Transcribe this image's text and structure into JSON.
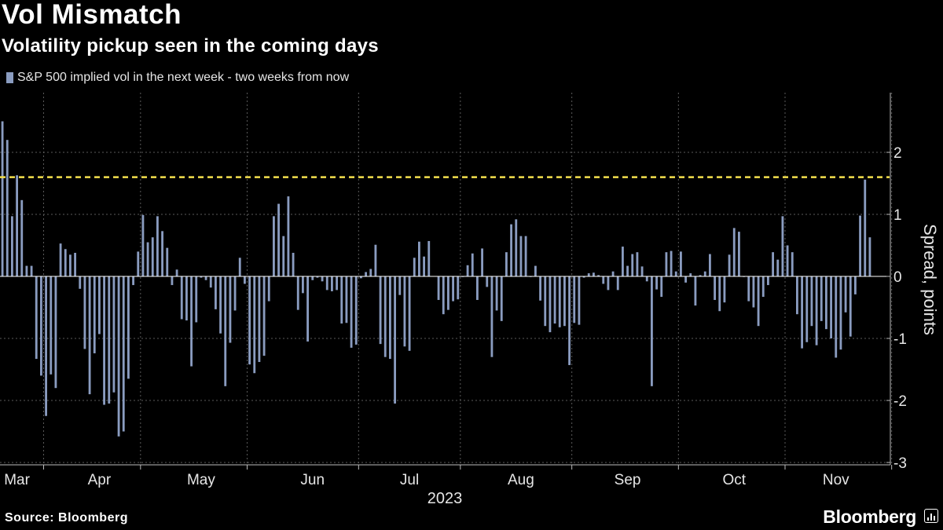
{
  "header": {
    "title": "Vol Mismatch",
    "subtitle": "Volatility pickup seen in the coming days"
  },
  "footer": {
    "source": "Source: Bloomberg",
    "brand": "Bloomberg"
  },
  "colors": {
    "bar": "#8a9cc0",
    "threshold": "#f4e04d",
    "grid": "#5a5a5a",
    "axis": "#bbbbbb",
    "background": "#000000"
  },
  "chart_data": {
    "type": "bar",
    "series": [
      {
        "name": "S&P 500 implied vol in the next week - two weeks from now",
        "values": [
          2.5,
          2.2,
          0.97,
          1.63,
          1.23,
          0.17,
          0.17,
          -1.33,
          -1.6,
          -2.25,
          -1.58,
          -1.8,
          0.53,
          0.44,
          0.35,
          0.38,
          -0.2,
          -1.17,
          -1.9,
          -1.24,
          -0.93,
          -2.07,
          -2.05,
          -1.87,
          -2.58,
          -2.5,
          -1.65,
          -0.14,
          0.4,
          0.99,
          0.55,
          0.63,
          0.97,
          0.73,
          0.46,
          -0.14,
          0.11,
          -0.69,
          -0.71,
          -1.45,
          -0.74,
          -0.02,
          -0.06,
          -0.18,
          -0.53,
          -0.92,
          -1.77,
          -1.07,
          -0.55,
          0.3,
          -0.12,
          -1.42,
          -1.56,
          -1.38,
          -1.28,
          -0.4,
          0.97,
          1.17,
          0.65,
          1.29,
          0.38,
          -0.54,
          -0.27,
          -1.05,
          -0.06,
          -0.02,
          -0.08,
          -0.22,
          -0.24,
          -0.22,
          -0.76,
          -0.75,
          -1.15,
          -1.1,
          -0.03,
          0.07,
          0.12,
          0.51,
          -1.09,
          -1.3,
          -1.33,
          -2.05,
          -0.3,
          -1.13,
          -1.2,
          0.3,
          0.56,
          0.32,
          0.57,
          0.0,
          -0.38,
          -0.61,
          -0.54,
          -0.4,
          -0.37,
          -0.01,
          0.18,
          0.37,
          -0.38,
          0.45,
          -0.17,
          -1.3,
          -0.55,
          -0.72,
          0.39,
          0.84,
          0.92,
          0.65,
          0.65,
          -0.01,
          0.17,
          -0.39,
          -0.8,
          -0.9,
          -0.76,
          -0.82,
          -0.8,
          -1.43,
          -0.75,
          -0.78,
          -0.02,
          0.05,
          0.06,
          0.02,
          -0.12,
          -0.22,
          0.08,
          -0.22,
          0.48,
          0.17,
          0.36,
          0.39,
          0.16,
          -0.08,
          -1.77,
          -0.21,
          -0.33,
          0.39,
          0.41,
          0.08,
          0.4,
          -0.1,
          0.05,
          -0.47,
          0.02,
          0.08,
          0.36,
          -0.38,
          -0.56,
          -0.42,
          0.35,
          0.78,
          0.72,
          -0.01,
          -0.4,
          -0.5,
          -0.8,
          -0.33,
          -0.14,
          0.39,
          0.27,
          0.97,
          0.5,
          0.39,
          -0.61,
          -1.16,
          -1.06,
          -0.8,
          -1.11,
          -0.72,
          -0.85,
          -1.0,
          -1.31,
          -1.18,
          -0.58,
          -0.97,
          -0.29,
          0.98,
          1.56,
          0.63
        ]
      }
    ],
    "threshold": 1.6,
    "xlabel": "2023",
    "ylabel": "Spread, points",
    "ylim": [
      -3,
      3
    ],
    "yticks": [
      2,
      1,
      0,
      -1,
      -2,
      -3
    ],
    "xticks": [
      {
        "label": "Mar",
        "index": 3
      },
      {
        "label": "Apr",
        "index": 20
      },
      {
        "label": "May",
        "index": 41
      },
      {
        "label": "Jun",
        "index": 64
      },
      {
        "label": "Jul",
        "index": 84
      },
      {
        "label": "Aug",
        "index": 107
      },
      {
        "label": "Sep",
        "index": 129
      },
      {
        "label": "Oct",
        "index": 151
      },
      {
        "label": "Nov",
        "index": 172
      }
    ],
    "vgrid_index": [
      9,
      29,
      51,
      74,
      95,
      118,
      140,
      162,
      184
    ],
    "grid": true,
    "legend_position": "top-left"
  }
}
